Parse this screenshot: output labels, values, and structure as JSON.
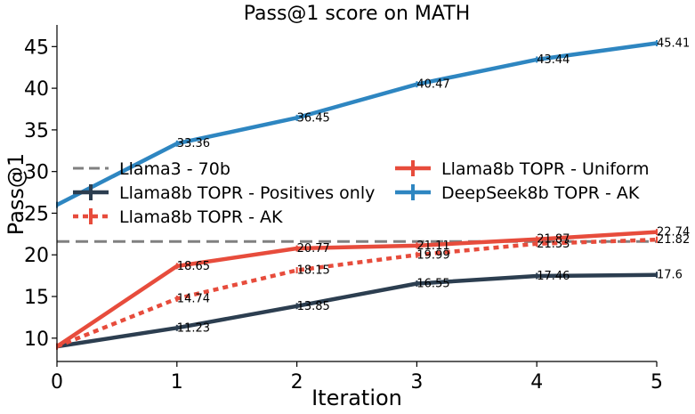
{
  "chart_data": {
    "type": "line",
    "title": "Pass@1 score on MATH",
    "xlabel": "Iteration",
    "ylabel": "Pass@1",
    "xlim": [
      0,
      5
    ],
    "ylim": [
      7.2,
      47.6
    ],
    "xticks": [
      0,
      1,
      2,
      3,
      4,
      5
    ],
    "yticks": [
      10,
      15,
      20,
      25,
      30,
      35,
      40,
      45
    ],
    "grid": false,
    "reference_lines": [
      {
        "name": "Llama3 - 70b",
        "y": 21.6,
        "color": "#808080",
        "style": "dashed"
      }
    ],
    "series": [
      {
        "name": "Llama8b TOPR - Positives only",
        "color": "#2c3e50",
        "style": "solid",
        "x": [
          0,
          1,
          2,
          3,
          4,
          5
        ],
        "values": [
          9.0,
          11.23,
          13.85,
          16.55,
          17.46,
          17.6
        ],
        "labels": [
          "",
          "11.23",
          "13.85",
          "16.55",
          "17.46",
          "17.6"
        ]
      },
      {
        "name": "Llama8b TOPR - AK",
        "color": "#e74c3c",
        "style": "dotted",
        "x": [
          0,
          1,
          2,
          3,
          4,
          5
        ],
        "values": [
          9.0,
          14.74,
          18.15,
          19.99,
          21.33,
          21.82
        ],
        "labels": [
          "",
          "14.74",
          "18.15",
          "19.99",
          "21.33",
          "21.82"
        ]
      },
      {
        "name": "Llama8b TOPR - Uniform",
        "color": "#e74c3c",
        "style": "solid",
        "x": [
          0,
          1,
          2,
          3,
          4,
          5
        ],
        "values": [
          9.0,
          18.65,
          20.77,
          21.11,
          21.87,
          22.74
        ],
        "labels": [
          "",
          "18.65",
          "20.77",
          "21.11",
          "21.87",
          "22.74"
        ]
      },
      {
        "name": "DeepSeek8b TOPR - AK",
        "color": "#2e86c1",
        "style": "solid",
        "x": [
          0,
          1,
          2,
          3,
          4,
          5
        ],
        "values": [
          26.0,
          33.36,
          36.45,
          40.47,
          43.44,
          45.41
        ],
        "labels": [
          "",
          "33.36",
          "36.45",
          "40.47",
          "43.44",
          "45.41"
        ]
      }
    ],
    "legend": {
      "position": "center-left",
      "columns": 2,
      "entries": [
        "Llama3 - 70b",
        "Llama8b TOPR - Positives only",
        "Llama8b TOPR - AK",
        "Llama8b TOPR - Uniform",
        "DeepSeek8b TOPR - AK"
      ]
    }
  }
}
